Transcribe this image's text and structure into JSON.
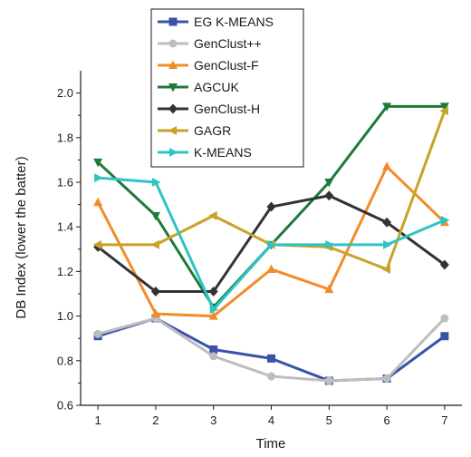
{
  "chart_data": {
    "type": "line",
    "title": "",
    "xlabel": "Time",
    "ylabel": "DB Index (lower the batter)",
    "x": [
      1,
      2,
      3,
      4,
      5,
      6,
      7
    ],
    "xlim": [
      0.7,
      7.3
    ],
    "ylim": [
      0.6,
      2.1
    ],
    "xticks": [
      "1",
      "2",
      "3",
      "4",
      "5",
      "6",
      "7"
    ],
    "yticks": [
      "0.6",
      "0.8",
      "1.0",
      "1.2",
      "1.4",
      "1.6",
      "1.8",
      "2.0"
    ],
    "grid": false,
    "legend_position": "top-center",
    "series": [
      {
        "name": "EG K-MEANS",
        "color": "#3a52a8",
        "marker": "square",
        "values": [
          0.91,
          0.99,
          0.85,
          0.81,
          0.71,
          0.72,
          0.91
        ]
      },
      {
        "name": "GenClust++",
        "color": "#bdbdbd",
        "marker": "circle",
        "values": [
          0.92,
          0.99,
          0.82,
          0.73,
          0.71,
          0.72,
          0.99
        ]
      },
      {
        "name": "GenClust-F",
        "color": "#f28c28",
        "marker": "triangle-up",
        "values": [
          1.51,
          1.01,
          1.0,
          1.21,
          1.12,
          1.67,
          1.42
        ]
      },
      {
        "name": "AGCUK",
        "color": "#1f7a3a",
        "marker": "triangle-down",
        "values": [
          1.69,
          1.45,
          1.04,
          1.32,
          1.6,
          1.94,
          1.94
        ]
      },
      {
        "name": "GenClust-H",
        "color": "#333333",
        "marker": "diamond",
        "values": [
          1.31,
          1.11,
          1.11,
          1.49,
          1.54,
          1.42,
          1.23
        ]
      },
      {
        "name": "GAGR",
        "color": "#c9a227",
        "marker": "triangle-left",
        "values": [
          1.32,
          1.32,
          1.45,
          1.32,
          1.31,
          1.21,
          1.92
        ]
      },
      {
        "name": "K-MEANS",
        "color": "#2ec4c4",
        "marker": "triangle-right",
        "values": [
          1.62,
          1.6,
          1.03,
          1.32,
          1.32,
          1.32,
          1.43
        ]
      }
    ]
  }
}
